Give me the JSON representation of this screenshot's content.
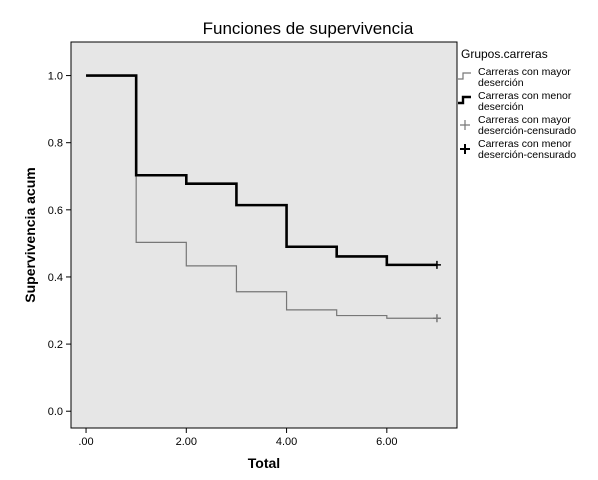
{
  "chart_data": {
    "type": "line",
    "subtype": "step",
    "title": "Funciones de supervivencia",
    "xlabel": "Total",
    "ylabel": "Supervivencia acum",
    "xlim": [
      -0.3,
      7.4
    ],
    "ylim": [
      -0.05,
      1.1
    ],
    "x_ticks": [
      0,
      2,
      4,
      6
    ],
    "x_tick_labels": [
      ".00",
      "2.00",
      "4.00",
      "6.00"
    ],
    "y_ticks": [
      0.0,
      0.2,
      0.4,
      0.6,
      0.8,
      1.0
    ],
    "y_tick_labels": [
      "0.0",
      "0.2",
      "0.4",
      "0.6",
      "0.8",
      "1.0"
    ],
    "grid": false,
    "plot_background": "#e6e6e6",
    "legend": {
      "title": "Grupos.carreras",
      "placement": "right",
      "entries": [
        {
          "lines": [
            "Carreras con mayor",
            "deserción"
          ],
          "style": "thin-step",
          "color": "#777777"
        },
        {
          "lines": [
            "Carreras con menor",
            "deserción"
          ],
          "style": "thick-step",
          "color": "#000000"
        },
        {
          "lines": [
            "Carreras con mayor",
            "deserción-censurado"
          ],
          "style": "thin-plus",
          "color": "#777777"
        },
        {
          "lines": [
            "Carreras con menor",
            "deserción-censurado"
          ],
          "style": "thick-plus",
          "color": "#000000"
        }
      ]
    },
    "series": [
      {
        "name": "Carreras con mayor deserción",
        "color": "#777777",
        "width": 1.2,
        "x": [
          0,
          1,
          2,
          3,
          4,
          5,
          6,
          7
        ],
        "y": [
          1.0,
          0.503,
          0.433,
          0.356,
          0.302,
          0.285,
          0.277,
          0.277
        ]
      },
      {
        "name": "Carreras con menor deserción",
        "color": "#000000",
        "width": 2.6,
        "x": [
          0,
          1,
          2,
          3,
          4,
          5,
          6,
          7
        ],
        "y": [
          1.0,
          0.703,
          0.678,
          0.614,
          0.49,
          0.461,
          0.436,
          0.436
        ]
      }
    ],
    "censored": [
      {
        "name": "Carreras con mayor deserción-censurado",
        "color": "#777777",
        "x": 7,
        "y": 0.277
      },
      {
        "name": "Carreras con menor deserción-censurado",
        "color": "#000000",
        "x": 7,
        "y": 0.436
      }
    ]
  }
}
